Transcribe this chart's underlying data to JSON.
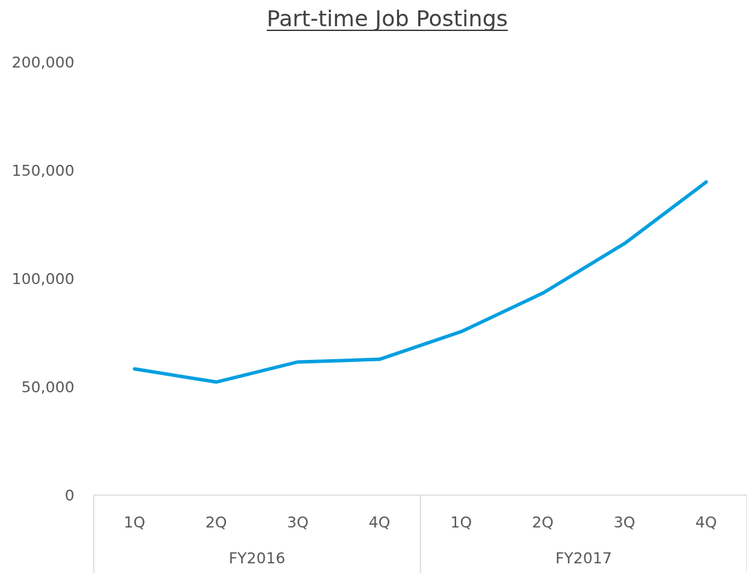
{
  "chart_data": {
    "type": "line",
    "title": "Part-time Job Postings",
    "categories": [
      "1Q",
      "2Q",
      "3Q",
      "4Q",
      "1Q",
      "2Q",
      "3Q",
      "4Q"
    ],
    "series": [
      {
        "color": "#009fe0",
        "values": [
          58300,
          52200,
          61500,
          62700,
          75500,
          93300,
          116200,
          144600
        ]
      }
    ],
    "ylim": [
      0,
      200000
    ],
    "yticks": [
      {
        "value": 0,
        "label": "0"
      },
      {
        "value": 50000,
        "label": "50,000"
      },
      {
        "value": 100000,
        "label": "100,000"
      },
      {
        "value": 150000,
        "label": "150,000"
      },
      {
        "value": 200000,
        "label": "200,000"
      }
    ],
    "grid": false,
    "marker": "none",
    "line_style": "solid",
    "annotations": [
      "FY2016",
      "FY2017"
    ]
  }
}
